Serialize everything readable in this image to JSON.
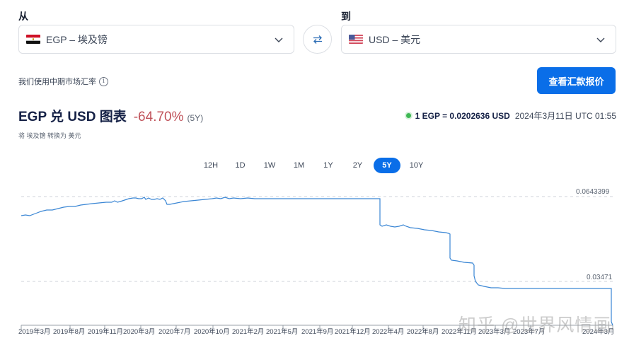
{
  "converter": {
    "from": {
      "label": "从",
      "value": "EGP – 埃及镑",
      "flag": "egypt-flag"
    },
    "to": {
      "label": "到",
      "value": "USD – 美元",
      "flag": "us-flag"
    },
    "swap_icon": "swap-arrows-icon"
  },
  "midrate_note": "我们使用中期市场汇率",
  "quote_button": "查看汇款报价",
  "chart_header": {
    "title": "EGP 兑 USD 图表",
    "change": "-64.70%",
    "period": "(5Y)",
    "subtitle": "将 埃及镑 转换为 美元",
    "rate": "1 EGP = 0.0202636 USD",
    "timestamp": "2024年3月11日 UTC 01:55"
  },
  "range_tabs": [
    "12H",
    "1D",
    "1W",
    "1M",
    "1Y",
    "2Y",
    "5Y",
    "10Y"
  ],
  "active_range": "5Y",
  "watermark": "知乎 @世界风情画",
  "colors": {
    "accent": "#0a6ee8",
    "line": "#3a86d4",
    "negative": "#c0525a",
    "live": "#3fb854"
  },
  "chart_data": {
    "type": "line",
    "title": "EGP 兑 USD 图表",
    "xlabel": "",
    "ylabel": "",
    "y_reference_lines": [
      0.0643399,
      0.03471
    ],
    "ylim": [
      0.0195,
      0.0655
    ],
    "grid": false,
    "x_ticks": [
      "2019年3月",
      "2019年8月",
      "2019年11月",
      "2020年3月",
      "2020年7月",
      "2020年10月",
      "2021年2月",
      "2021年5月",
      "2021年9月",
      "2021年12月",
      "2022年4月",
      "2022年8月",
      "2022年11月",
      "2023年3月",
      "2023年7月",
      "2024年3月"
    ],
    "series": [
      {
        "name": "EGP/USD",
        "x": [
          "2019-03",
          "2019-05",
          "2019-08",
          "2019-11",
          "2020-02",
          "2020-03",
          "2020-05",
          "2020-07",
          "2020-10",
          "2021-02",
          "2021-05",
          "2021-09",
          "2021-12",
          "2022-03",
          "2022-03",
          "2022-06",
          "2022-08",
          "2022-10",
          "2022-10",
          "2022-12",
          "2023-01",
          "2023-03",
          "2023-07",
          "2024-02",
          "2024-03"
        ],
        "values": [
          0.0577,
          0.0585,
          0.0603,
          0.0619,
          0.0637,
          0.0637,
          0.0632,
          0.0626,
          0.0637,
          0.0637,
          0.0638,
          0.0637,
          0.0636,
          0.0636,
          0.0548,
          0.0535,
          0.0521,
          0.0511,
          0.041,
          0.0405,
          0.0336,
          0.0327,
          0.0324,
          0.0324,
          0.0203
        ]
      }
    ]
  },
  "chart_labels": {
    "y_top": "0.0643399",
    "y_mid": "0.03471"
  }
}
